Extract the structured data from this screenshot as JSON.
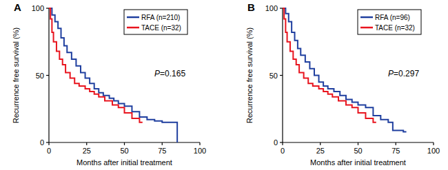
{
  "chart_data": [
    {
      "type": "line",
      "title": "A",
      "line_style": "step",
      "x_label": "Months after initial treatment",
      "y_label": "Recurrence free survival (%)",
      "xlim": [
        0,
        100
      ],
      "xticks": [
        0,
        25,
        50,
        75,
        100
      ],
      "ylim": [
        0,
        100
      ],
      "yticks": [
        0,
        50,
        100
      ],
      "legend": "top-right",
      "annotations": [
        {
          "text": "P=0.165"
        }
      ],
      "series": [
        {
          "name": "RFA (n=210)",
          "color": "#1f3f9f",
          "x": [
            0,
            2,
            4,
            6,
            8,
            10,
            12,
            15,
            18,
            21,
            24,
            27,
            30,
            33,
            36,
            40,
            43,
            46,
            50,
            55,
            60,
            65,
            70,
            75,
            85,
            85
          ],
          "values": [
            100,
            95,
            90,
            85,
            78,
            72,
            67,
            62,
            57,
            52,
            48,
            44,
            40,
            37,
            35,
            33,
            31,
            29,
            27,
            23,
            19,
            17,
            16,
            15,
            15,
            0
          ]
        },
        {
          "name": "TACE (n=32)",
          "color": "#e8141e",
          "x": [
            0,
            1,
            2,
            3,
            5,
            7,
            9,
            11,
            14,
            17,
            20,
            24,
            27,
            30,
            33,
            37,
            42,
            46,
            50,
            55,
            60,
            62
          ],
          "values": [
            100,
            92,
            82,
            75,
            68,
            62,
            58,
            52,
            48,
            44,
            42,
            40,
            38,
            36,
            34,
            31,
            28,
            26,
            22,
            18,
            15,
            15
          ]
        }
      ]
    },
    {
      "type": "line",
      "title": "B",
      "line_style": "step",
      "x_label": "Months after initial treatment",
      "y_label": "Recurrence free survival (%)",
      "xlim": [
        0,
        100
      ],
      "xticks": [
        0,
        25,
        50,
        75,
        100
      ],
      "ylim": [
        0,
        100
      ],
      "yticks": [
        0,
        50,
        100
      ],
      "legend": "top-right",
      "annotations": [
        {
          "text": "P=0.297"
        }
      ],
      "series": [
        {
          "name": "RFA (n=96)",
          "color": "#1f3f9f",
          "x": [
            0,
            2,
            4,
            6,
            8,
            10,
            12,
            15,
            18,
            21,
            24,
            27,
            30,
            34,
            38,
            42,
            46,
            50,
            55,
            60,
            65,
            70,
            73,
            80,
            82
          ],
          "values": [
            100,
            96,
            90,
            82,
            76,
            70,
            65,
            60,
            55,
            50,
            45,
            42,
            40,
            38,
            35,
            32,
            30,
            28,
            26,
            20,
            17,
            15,
            9,
            8,
            8
          ]
        },
        {
          "name": "TACE (n=32)",
          "color": "#e8141e",
          "x": [
            0,
            1,
            2,
            3,
            5,
            7,
            9,
            11,
            14,
            17,
            20,
            24,
            27,
            30,
            33,
            37,
            42,
            46,
            50,
            55,
            60,
            62
          ],
          "values": [
            100,
            92,
            82,
            75,
            68,
            62,
            58,
            52,
            48,
            44,
            42,
            40,
            38,
            36,
            34,
            31,
            28,
            26,
            22,
            18,
            15,
            15
          ]
        }
      ]
    }
  ]
}
